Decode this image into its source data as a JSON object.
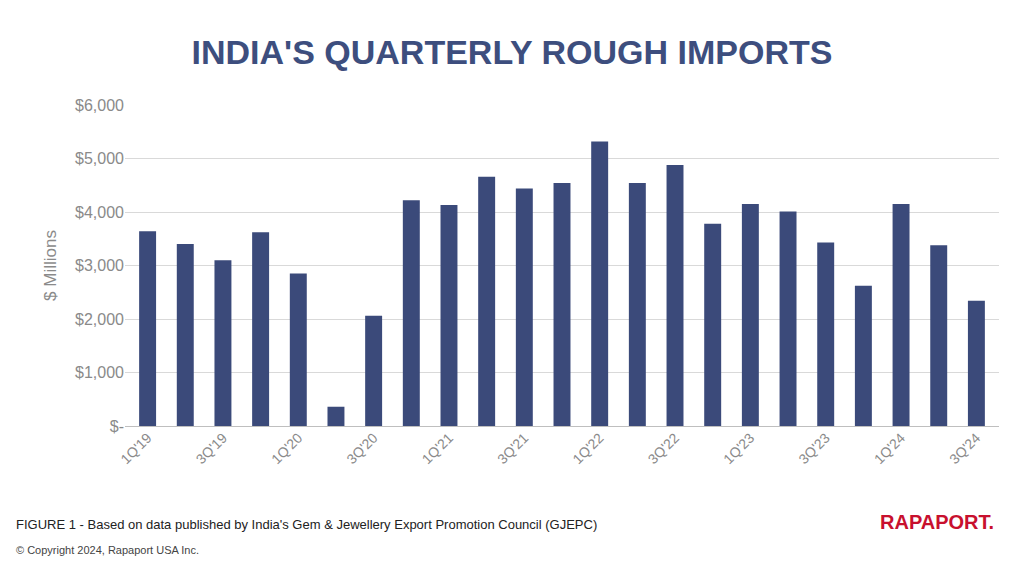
{
  "chart_data": {
    "type": "bar",
    "title": "INDIA'S QUARTERLY ROUGH IMPORTS",
    "y_label": "$ Millions",
    "categories": [
      "1Q'19",
      null,
      "3Q'19",
      null,
      "1Q'20",
      null,
      "3Q'20",
      null,
      "1Q'21",
      null,
      "3Q'21",
      null,
      "1Q'22",
      null,
      "3Q'22",
      null,
      "1Q'23",
      null,
      "3Q'23",
      null,
      "1Q'24",
      null,
      "3Q'24"
    ],
    "values": [
      3640,
      3400,
      3100,
      3620,
      2850,
      360,
      2060,
      4220,
      4130,
      4660,
      4440,
      4540,
      5320,
      4540,
      4880,
      3780,
      4150,
      4010,
      3430,
      2620,
      4150,
      3380,
      2340
    ],
    "color": "#3b4a7a",
    "ylim": [
      0,
      6000
    ],
    "yticks": [
      {
        "value": 0,
        "label": "$-"
      },
      {
        "value": 1000,
        "label": "$1,000"
      },
      {
        "value": 2000,
        "label": "$2,000"
      },
      {
        "value": 3000,
        "label": "$3,000"
      },
      {
        "value": 4000,
        "label": "$4,000"
      },
      {
        "value": 5000,
        "label": "$5,000"
      },
      {
        "value": 6000,
        "label": "$6,000"
      }
    ],
    "grid": true,
    "annotations": [
      "FIGURE 1 - Based on data published by India's Gem & Jewellery Export Promotion Council (GJEPC)",
      "RAPAPORT.",
      "© Copyright 2024, Rapaport USA Inc."
    ]
  }
}
